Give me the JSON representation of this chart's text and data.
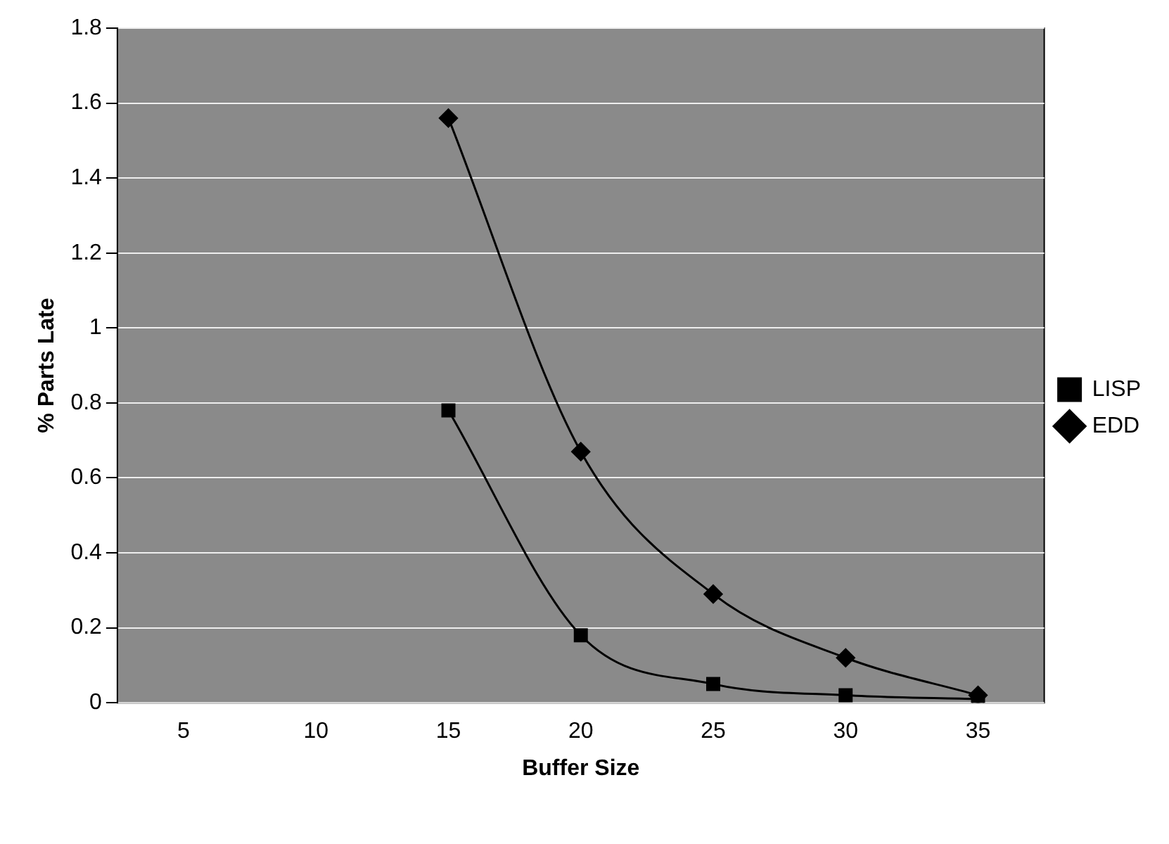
{
  "chart_data": {
    "type": "line",
    "xlabel": "Buffer Size",
    "ylabel": "% Parts Late",
    "categories": [
      "5",
      "10",
      "15",
      "20",
      "25",
      "30",
      "35"
    ],
    "series": [
      {
        "name": "EDD",
        "color": "#000000",
        "marker": "diamond",
        "values": [
          null,
          null,
          1.56,
          0.67,
          0.29,
          0.12,
          0.02
        ]
      },
      {
        "name": "LISP",
        "color": "#000000",
        "marker": "square",
        "values": [
          null,
          null,
          0.78,
          0.18,
          0.05,
          0.02,
          0.01
        ]
      }
    ],
    "ylim": [
      0,
      1.8
    ],
    "yticks": [
      0,
      0.2,
      0.4,
      0.6,
      0.8,
      1,
      1.2,
      1.4,
      1.6,
      1.8
    ],
    "grid": "y",
    "legend": "right",
    "line_style": "solid"
  }
}
